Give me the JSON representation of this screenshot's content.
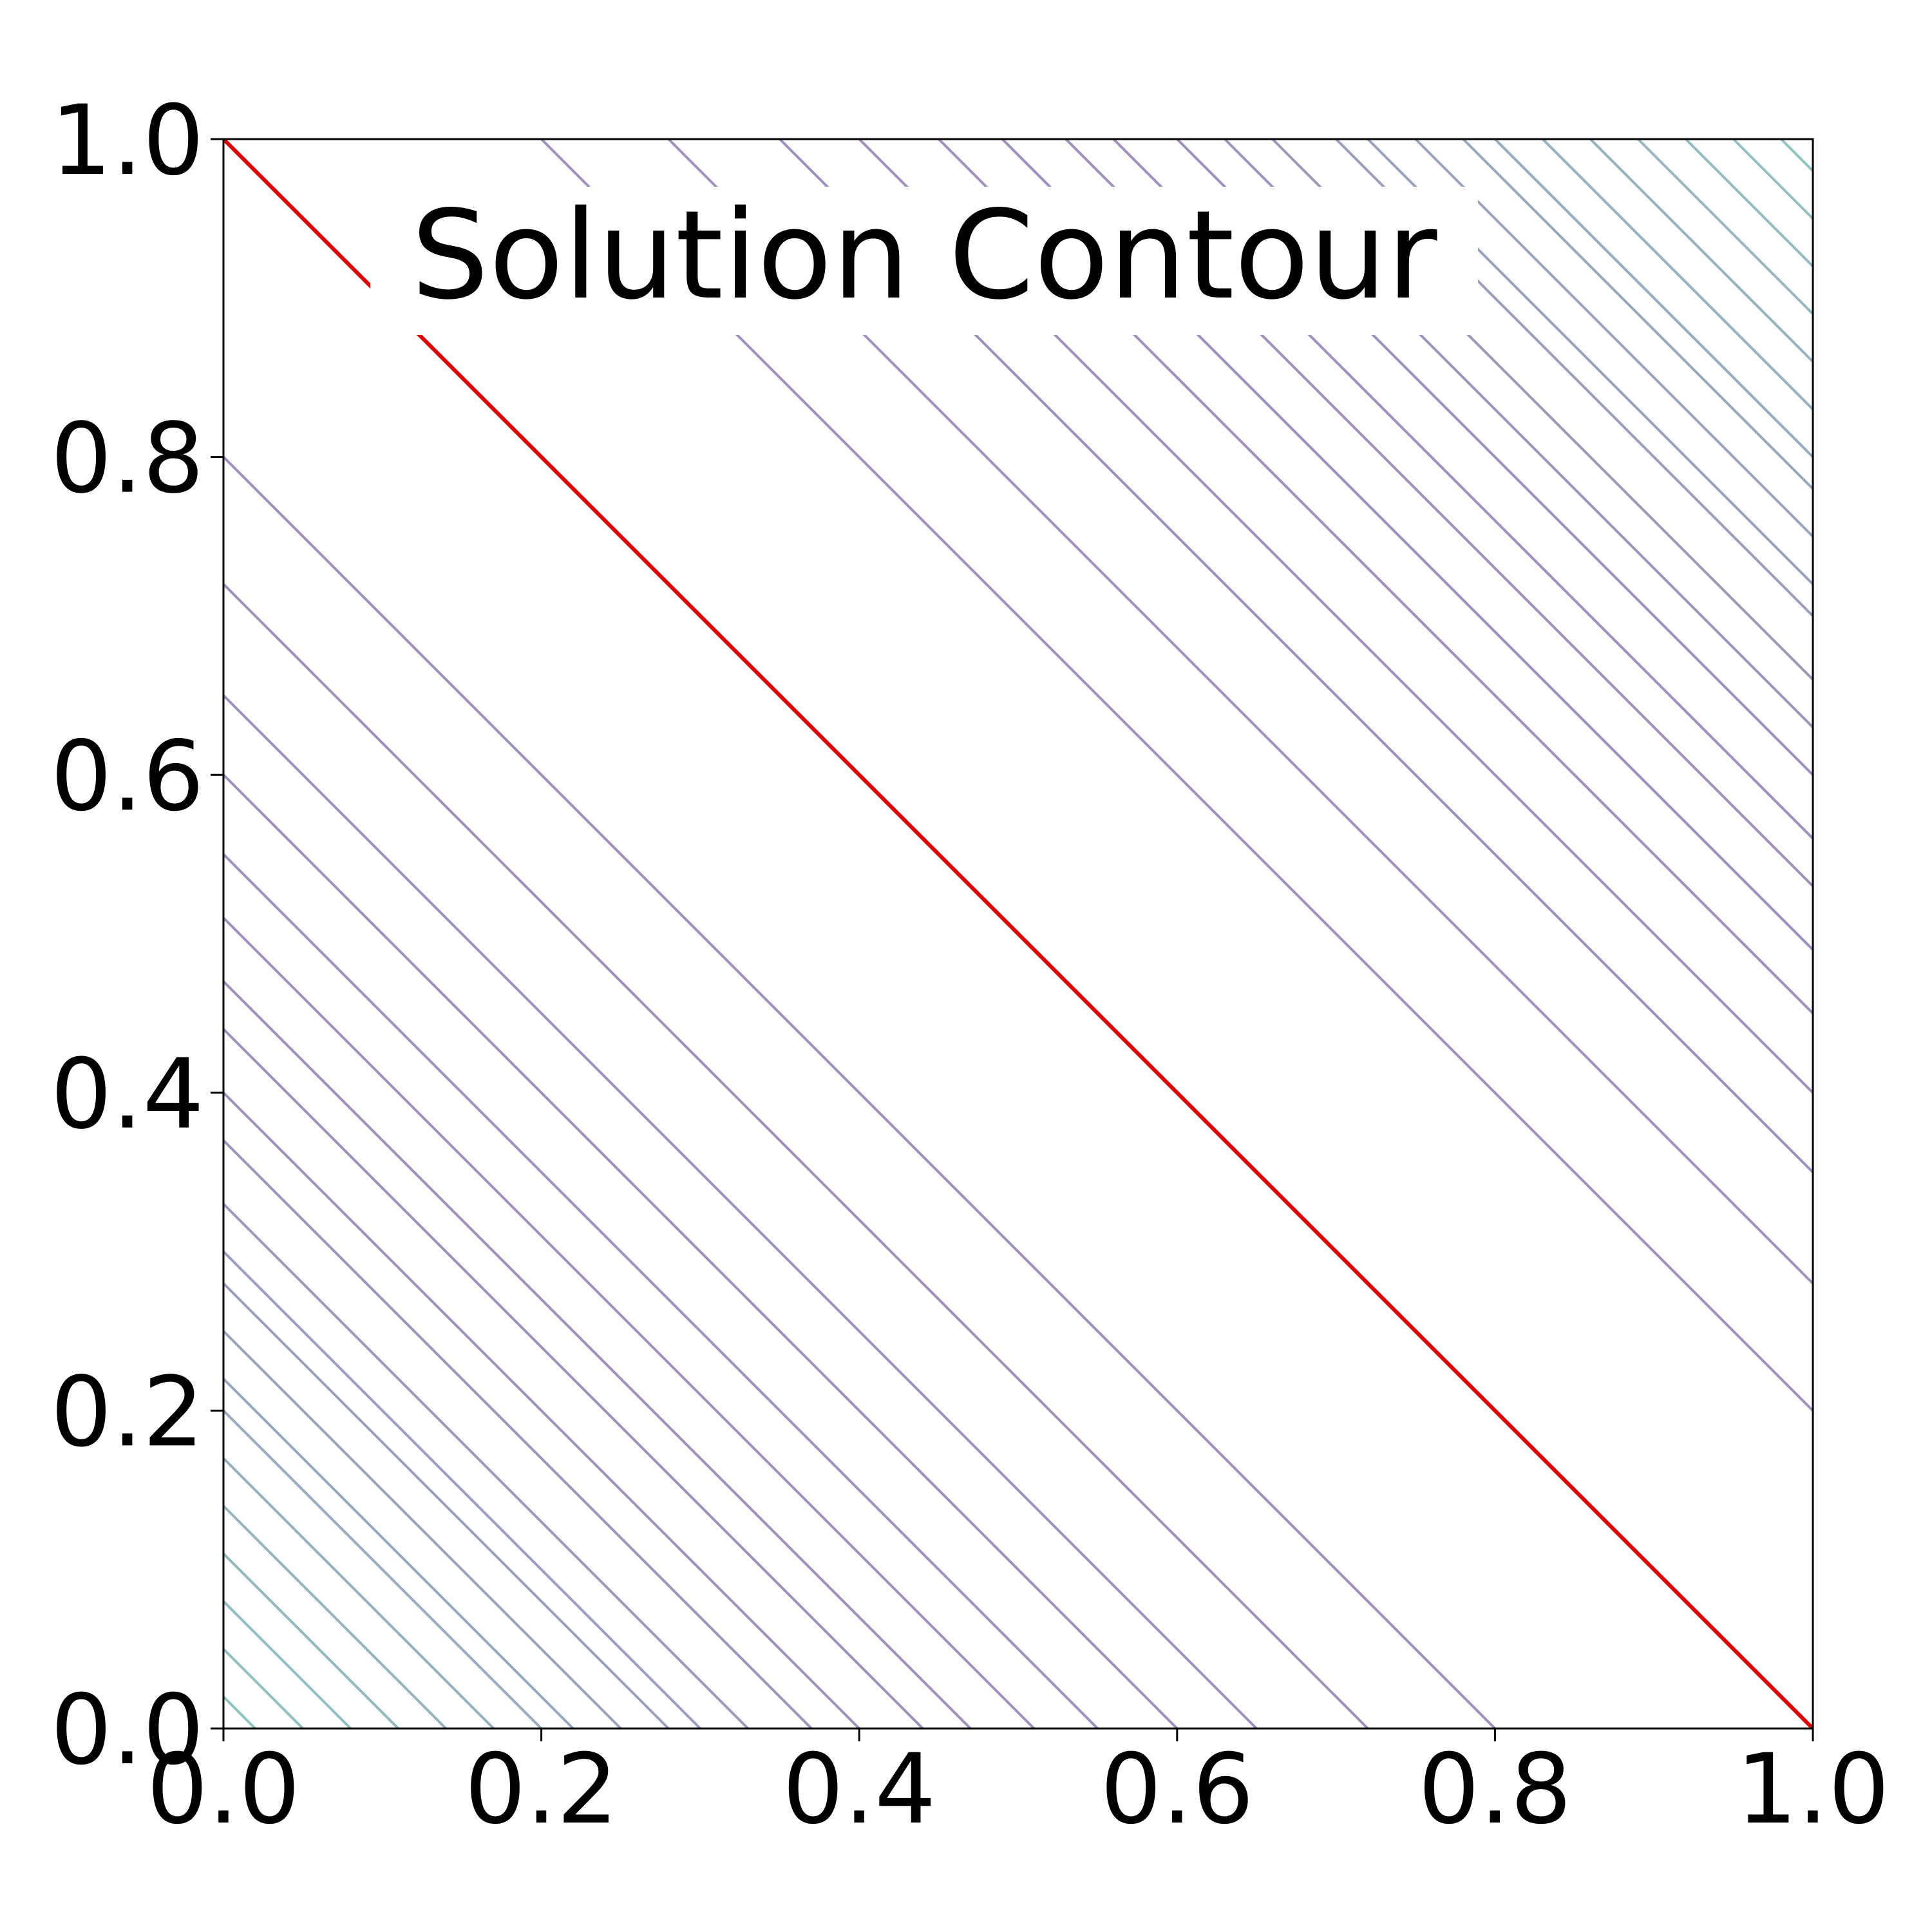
{
  "chart_data": {
    "type": "contour",
    "title": "Solution Contour",
    "xlabel": "",
    "ylabel": "",
    "xlim": [
      0.0,
      1.0
    ],
    "ylim": [
      0.0,
      1.0
    ],
    "grid": false,
    "function": "level = x + y",
    "x_ticks": [
      "0.0",
      "0.2",
      "0.4",
      "0.6",
      "0.8",
      "1.0"
    ],
    "y_ticks": [
      "0.0",
      "0.2",
      "0.4",
      "0.6",
      "0.8",
      "1.0"
    ],
    "x_tick_values": [
      0.0,
      0.2,
      0.4,
      0.6,
      0.8,
      1.0
    ],
    "y_tick_values": [
      0.0,
      0.2,
      0.4,
      0.6,
      0.8,
      1.0
    ],
    "contour_levels": [
      0.02,
      0.05,
      0.08,
      0.11,
      0.14,
      0.17,
      0.2,
      0.22,
      0.25,
      0.28,
      0.3,
      0.33,
      0.37,
      0.4,
      0.44,
      0.47,
      0.51,
      0.55,
      0.6,
      0.65,
      0.72,
      0.8,
      1.2,
      1.28,
      1.35,
      1.4,
      1.45,
      1.49,
      1.53,
      1.56,
      1.6,
      1.63,
      1.66,
      1.7,
      1.72,
      1.75,
      1.78,
      1.8,
      1.83,
      1.86,
      1.89,
      1.92,
      1.95,
      1.98
    ],
    "highlight_level": 1.0,
    "colors": {
      "highlight": "#e00000",
      "contour_mid": "#9f90c0",
      "contour_edge": "#8ec8c0",
      "axes": "#000000"
    }
  }
}
